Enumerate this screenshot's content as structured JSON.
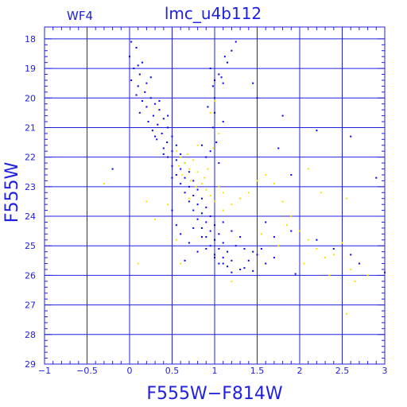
{
  "chart_data": {
    "type": "scatter",
    "chip_label": "WF4",
    "title": "lmc_u4b112",
    "xlabel": "F555W−F814W",
    "ylabel": "F555W",
    "xlim": [
      -1,
      3
    ],
    "ylim": [
      29,
      17.6
    ],
    "y_inverted": true,
    "grid": true,
    "x_ticks": [
      -1,
      -0.5,
      0,
      0.5,
      1,
      1.5,
      2,
      2.5,
      3
    ],
    "x_tick_labels": [
      "−1",
      "−0.5",
      "0",
      "0.5",
      "1",
      "1.5",
      "2",
      "2.5",
      "3"
    ],
    "y_ticks": [
      18,
      19,
      20,
      21,
      22,
      23,
      24,
      25,
      26,
      27,
      28,
      29
    ],
    "y_tick_labels": [
      "18",
      "19",
      "20",
      "21",
      "22",
      "23",
      "24",
      "25",
      "26",
      "27",
      "28",
      "29"
    ],
    "colors": {
      "axes": "#2020e0",
      "grid": "#2020e0",
      "series_a": "#0000ee",
      "series_b": "#f2e600"
    },
    "series": [
      {
        "color": "#0000ee",
        "description_points": "blue stars: main sequence, turnoff, subgiant and red giant branch",
        "points": [
          [
            0.02,
            18.1
          ],
          [
            0.08,
            18.3
          ],
          [
            0.0,
            18.6
          ],
          [
            0.15,
            18.8
          ],
          [
            0.05,
            19.0
          ],
          [
            0.12,
            19.2
          ],
          [
            0.02,
            19.4
          ],
          [
            0.2,
            19.5
          ],
          [
            0.1,
            19.6
          ],
          [
            0.18,
            19.8
          ],
          [
            0.08,
            19.9
          ],
          [
            0.25,
            20.0
          ],
          [
            0.15,
            20.1
          ],
          [
            0.3,
            20.2
          ],
          [
            0.2,
            20.3
          ],
          [
            0.35,
            20.4
          ],
          [
            0.12,
            20.5
          ],
          [
            0.28,
            20.6
          ],
          [
            0.4,
            20.7
          ],
          [
            0.22,
            20.8
          ],
          [
            0.33,
            20.9
          ],
          [
            0.45,
            21.0
          ],
          [
            0.27,
            21.1
          ],
          [
            0.38,
            21.2
          ],
          [
            0.5,
            21.3
          ],
          [
            0.32,
            21.4
          ],
          [
            0.44,
            21.5
          ],
          [
            0.55,
            21.6
          ],
          [
            0.4,
            21.7
          ],
          [
            0.5,
            21.8
          ],
          [
            0.6,
            21.9
          ],
          [
            0.45,
            22.0
          ],
          [
            0.55,
            22.1
          ],
          [
            0.65,
            22.2
          ],
          [
            0.5,
            22.3
          ],
          [
            0.6,
            22.4
          ],
          [
            0.7,
            22.5
          ],
          [
            0.55,
            22.6
          ],
          [
            0.65,
            22.7
          ],
          [
            0.75,
            22.8
          ],
          [
            0.6,
            22.9
          ],
          [
            0.7,
            23.0
          ],
          [
            0.8,
            23.1
          ],
          [
            0.65,
            23.2
          ],
          [
            0.75,
            23.3
          ],
          [
            0.85,
            23.4
          ],
          [
            0.7,
            23.5
          ],
          [
            0.8,
            23.6
          ],
          [
            0.9,
            23.7
          ],
          [
            0.75,
            23.8
          ],
          [
            0.85,
            23.9
          ],
          [
            0.95,
            24.0
          ],
          [
            0.8,
            24.1
          ],
          [
            0.9,
            24.2
          ],
          [
            1.0,
            24.3
          ],
          [
            0.85,
            24.4
          ],
          [
            0.95,
            24.5
          ],
          [
            1.05,
            24.6
          ],
          [
            0.9,
            24.7
          ],
          [
            1.0,
            24.8
          ],
          [
            1.1,
            24.9
          ],
          [
            0.95,
            25.0
          ],
          [
            1.05,
            25.1
          ],
          [
            1.15,
            25.2
          ],
          [
            1.0,
            25.3
          ],
          [
            1.1,
            25.4
          ],
          [
            1.2,
            25.5
          ],
          [
            1.05,
            25.6
          ],
          [
            1.15,
            25.7
          ],
          [
            1.3,
            25.8
          ],
          [
            1.4,
            25.5
          ],
          [
            1.5,
            25.3
          ],
          [
            1.6,
            25.6
          ],
          [
            1.7,
            25.4
          ],
          [
            1.2,
            25.9
          ],
          [
            1.35,
            25.75
          ],
          [
            1.45,
            25.85
          ],
          [
            0.7,
            24.9
          ],
          [
            0.8,
            25.2
          ],
          [
            0.6,
            24.6
          ],
          [
            0.55,
            24.3
          ],
          [
            0.65,
            25.5
          ],
          [
            0.5,
            23.8
          ],
          [
            1.25,
            25.0
          ],
          [
            1.35,
            25.1
          ],
          [
            1.45,
            25.2
          ],
          [
            1.55,
            25.1
          ],
          [
            1.3,
            24.7
          ],
          [
            1.2,
            24.5
          ],
          [
            1.1,
            24.2
          ],
          [
            0.95,
            19.0
          ],
          [
            1.05,
            19.2
          ],
          [
            1.0,
            19.4
          ],
          [
            1.1,
            19.5
          ],
          [
            0.98,
            19.6
          ],
          [
            1.08,
            19.3
          ],
          [
            1.15,
            18.8
          ],
          [
            1.2,
            18.4
          ],
          [
            1.25,
            18.1
          ],
          [
            1.12,
            18.6
          ],
          [
            1.0,
            20.0
          ],
          [
            1.0,
            20.5
          ],
          [
            0.98,
            21.0
          ],
          [
            1.02,
            21.5
          ],
          [
            0.95,
            21.8
          ],
          [
            1.05,
            22.2
          ],
          [
            0.9,
            22.0
          ],
          [
            0.85,
            21.6
          ],
          [
            1.1,
            20.8
          ],
          [
            0.92,
            20.3
          ],
          [
            1.5,
            20.0
          ],
          [
            1.45,
            19.5
          ],
          [
            1.8,
            20.6
          ],
          [
            2.2,
            21.1
          ],
          [
            2.6,
            21.3
          ],
          [
            1.9,
            22.6
          ],
          [
            1.75,
            21.7
          ],
          [
            -0.2,
            22.4
          ],
          [
            1.7,
            24.7
          ],
          [
            1.9,
            24.5
          ],
          [
            2.2,
            24.8
          ],
          [
            2.4,
            25.1
          ],
          [
            2.7,
            25.6
          ],
          [
            3.0,
            25.9
          ],
          [
            2.9,
            22.7
          ],
          [
            2.6,
            25.3
          ],
          [
            1.95,
            25.95
          ],
          [
            1.6,
            24.2
          ],
          [
            0.3,
            21.3
          ],
          [
            0.35,
            20.1
          ],
          [
            0.45,
            20.6
          ],
          [
            0.25,
            19.3
          ],
          [
            0.1,
            18.9
          ],
          [
            0.4,
            21.9
          ],
          [
            0.5,
            22.7
          ],
          [
            0.75,
            24.4
          ],
          [
            0.85,
            24.7
          ],
          [
            0.9,
            25.1
          ],
          [
            1.0,
            25.4
          ],
          [
            1.1,
            25.6
          ]
        ]
      },
      {
        "color": "#f2e600",
        "description_points": "yellow stars: overlapping the turnoff/subgiant region plus scattered field",
        "points": [
          [
            0.55,
            21.8
          ],
          [
            0.6,
            22.0
          ],
          [
            0.65,
            22.2
          ],
          [
            0.7,
            22.4
          ],
          [
            0.62,
            22.6
          ],
          [
            0.72,
            22.8
          ],
          [
            0.58,
            22.3
          ],
          [
            0.68,
            21.9
          ],
          [
            0.75,
            22.1
          ],
          [
            0.8,
            22.5
          ],
          [
            0.85,
            22.9
          ],
          [
            0.9,
            23.1
          ],
          [
            0.95,
            23.3
          ],
          [
            0.78,
            23.0
          ],
          [
            0.88,
            22.7
          ],
          [
            1.0,
            23.5
          ],
          [
            1.05,
            23.0
          ],
          [
            1.1,
            23.2
          ],
          [
            0.92,
            22.4
          ],
          [
            0.98,
            21.7
          ],
          [
            1.05,
            21.2
          ],
          [
            0.95,
            20.5
          ],
          [
            1.0,
            20.1
          ],
          [
            1.1,
            23.8
          ],
          [
            1.2,
            23.6
          ],
          [
            1.3,
            23.4
          ],
          [
            1.4,
            23.2
          ],
          [
            1.5,
            22.8
          ],
          [
            1.6,
            22.6
          ],
          [
            1.7,
            22.9
          ],
          [
            1.8,
            23.5
          ],
          [
            1.9,
            24.0
          ],
          [
            2.0,
            24.5
          ],
          [
            2.1,
            24.8
          ],
          [
            2.2,
            25.1
          ],
          [
            2.3,
            25.4
          ],
          [
            2.4,
            25.3
          ],
          [
            2.5,
            24.9
          ],
          [
            2.55,
            23.4
          ],
          [
            2.6,
            25.8
          ],
          [
            2.65,
            26.2
          ],
          [
            2.55,
            27.3
          ],
          [
            2.8,
            26.0
          ],
          [
            2.1,
            22.4
          ],
          [
            2.25,
            23.2
          ],
          [
            -0.3,
            22.9
          ],
          [
            0.1,
            25.6
          ],
          [
            0.3,
            24.1
          ],
          [
            0.2,
            23.5
          ],
          [
            0.45,
            23.6
          ],
          [
            0.55,
            24.8
          ],
          [
            0.6,
            25.6
          ],
          [
            1.2,
            26.2
          ],
          [
            1.55,
            24.6
          ],
          [
            1.75,
            25.0
          ],
          [
            1.85,
            24.3
          ],
          [
            2.05,
            25.6
          ],
          [
            2.35,
            26.0
          ],
          [
            0.7,
            23.4
          ],
          [
            0.8,
            21.6
          ]
        ]
      }
    ]
  }
}
